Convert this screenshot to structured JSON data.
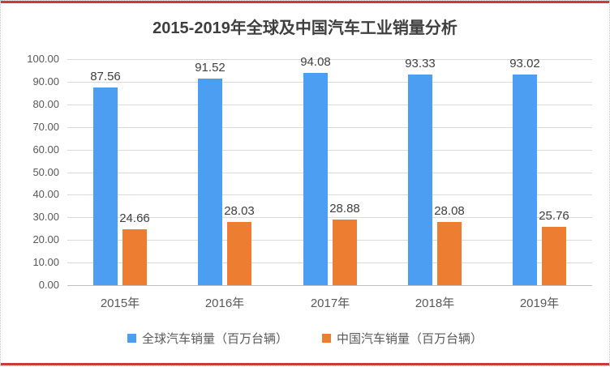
{
  "frame": {
    "accent_red": "#cc3a3a",
    "background": "#ffffff",
    "border_color": "#cccccc"
  },
  "chart_data": {
    "type": "bar",
    "title": "2015-2019年全球及中国汽车工业销量分析",
    "categories": [
      "2015年",
      "2016年",
      "2017年",
      "2018年",
      "2019年"
    ],
    "series": [
      {
        "name": "全球汽车销量（百万台辆）",
        "color": "#4B9EF2",
        "values": [
          87.56,
          91.52,
          94.08,
          93.33,
          93.02
        ]
      },
      {
        "name": "中国汽车销量（百万台辆）",
        "color": "#ED7D31",
        "values": [
          24.66,
          28.03,
          28.88,
          28.08,
          25.76
        ]
      }
    ],
    "ylim": [
      0,
      100
    ],
    "ytick_step": 10,
    "ytick_decimals": 2,
    "ytick_labels": [
      "0.00",
      "10.00",
      "20.00",
      "30.00",
      "40.00",
      "50.00",
      "60.00",
      "70.00",
      "80.00",
      "90.00",
      "100.00"
    ],
    "grid": true,
    "legend_position": "bottom",
    "data_labels": true,
    "colors": {
      "gridline": "#dadada",
      "axis_line": "#c0c0c0",
      "tick_text": "#595959",
      "label_text": "#404040",
      "title_text": "#3f3f3f"
    }
  }
}
